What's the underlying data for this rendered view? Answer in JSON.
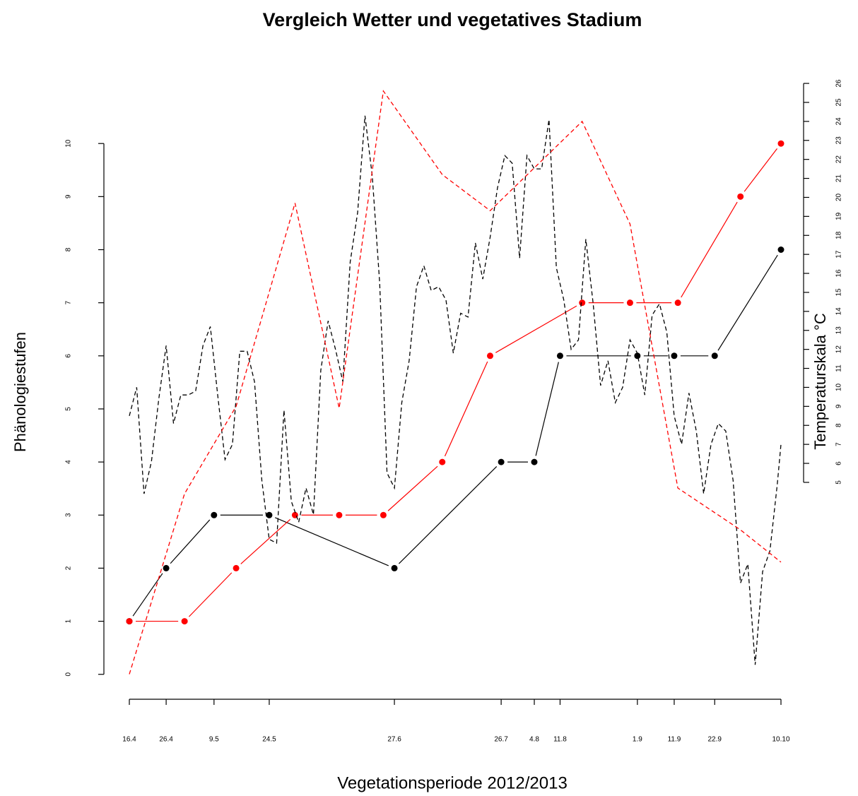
{
  "chart_data": {
    "type": "line",
    "title": "Vergleich Wetter und vegetatives Stadium",
    "x_label": "Vegetationsperiode 2012/2013",
    "y_label": "Phänologiestufen",
    "y2_label": "Temperaturskala °C",
    "xlim": [
      0,
      177
    ],
    "xticks": [
      {
        "value": 0,
        "label": "16.4"
      },
      {
        "value": 10,
        "label": "26.4"
      },
      {
        "value": 23,
        "label": "9.5"
      },
      {
        "value": 38,
        "label": "24.5"
      },
      {
        "value": 72,
        "label": "27.6"
      },
      {
        "value": 101,
        "label": "26.7"
      },
      {
        "value": 110,
        "label": "4.8"
      },
      {
        "value": 117,
        "label": "11.8"
      },
      {
        "value": 138,
        "label": "1.9"
      },
      {
        "value": 148,
        "label": "11.9"
      },
      {
        "value": 159,
        "label": "22.9"
      },
      {
        "value": 177,
        "label": "10.10"
      }
    ],
    "ylim": [
      -0.07,
      11.24
    ],
    "yticks": [
      0,
      1,
      2,
      3,
      4,
      5,
      6,
      7,
      8,
      9,
      10
    ],
    "y2lim": [
      -5.3,
      26.3
    ],
    "y2ticks": [
      5,
      6,
      7,
      8,
      9,
      10,
      11,
      12,
      13,
      14,
      15,
      16,
      17,
      18,
      19,
      20,
      21,
      22,
      23,
      24,
      25,
      26
    ],
    "grid": false,
    "series": [
      {
        "color": "#000000",
        "line_style": "solid",
        "markers": true,
        "x": [
          0,
          10,
          23,
          38,
          72,
          101,
          110,
          117,
          138,
          148,
          159,
          177
        ],
        "values": [
          1,
          2,
          3,
          3,
          2,
          4,
          4,
          6,
          6,
          6,
          6,
          8
        ]
      },
      {
        "color": "#ff0000",
        "line_style": "solid",
        "markers": true,
        "x": [
          0,
          15,
          29,
          45,
          57,
          69,
          85,
          98,
          123,
          136,
          149,
          166,
          177
        ],
        "values": [
          1,
          1,
          2,
          3,
          3,
          3,
          4,
          6,
          7,
          7,
          7,
          9,
          10
        ]
      },
      {
        "color": "#000000",
        "line_style": "dashed",
        "markers": false,
        "axis": "y2",
        "x": [
          0,
          2,
          4,
          6,
          8,
          10,
          12,
          14,
          16,
          18,
          20,
          22,
          24,
          26,
          28,
          30,
          32,
          34,
          36,
          38,
          40,
          42,
          44,
          46,
          48,
          50,
          52,
          54,
          56,
          58,
          60,
          62,
          64,
          66,
          68,
          70,
          72,
          74,
          76,
          78,
          80,
          82,
          84,
          86,
          88,
          90,
          92,
          94,
          96,
          98,
          100,
          102,
          104,
          106,
          108,
          110,
          112,
          114,
          116,
          118,
          120,
          122,
          124,
          126,
          128,
          130,
          132,
          134,
          136,
          138,
          140,
          142,
          144,
          146,
          148,
          150,
          152,
          154,
          156,
          158,
          160,
          162,
          164,
          166,
          168,
          170,
          172,
          174,
          176,
          177
        ],
        "values": [
          8.5,
          10.0,
          4.4,
          6.1,
          9.4,
          12.2,
          8.1,
          9.6,
          9.6,
          9.8,
          12.2,
          13.2,
          9.6,
          6.2,
          7.0,
          11.9,
          11.9,
          10.3,
          5.1,
          2.0,
          1.8,
          8.8,
          4.0,
          2.9,
          4.7,
          3.3,
          10.9,
          13.5,
          12.0,
          10.3,
          16.6,
          19.2,
          24.3,
          21.1,
          15.5,
          5.5,
          4.7,
          9.2,
          11.4,
          15.3,
          16.4,
          15.1,
          15.3,
          14.6,
          11.8,
          13.9,
          13.7,
          17.6,
          15.7,
          17.9,
          20.5,
          22.2,
          21.8,
          16.8,
          22.2,
          21.5,
          21.5,
          24.1,
          16.3,
          14.6,
          12.0,
          12.5,
          17.8,
          14.4,
          10.1,
          11.4,
          9.2,
          10.0,
          12.5,
          11.8,
          9.6,
          13.8,
          14.4,
          12.9,
          8.5,
          7.0,
          9.7,
          7.7,
          4.4,
          7.0,
          8.1,
          7.7,
          5.1,
          -0.3,
          0.7,
          -4.6,
          0.3,
          1.4,
          4.9,
          7.0
        ]
      },
      {
        "color": "#ff0000",
        "line_style": "dashed",
        "markers": false,
        "axis": "y2",
        "x": [
          0,
          15,
          29,
          45,
          57,
          69,
          85,
          98,
          123,
          136,
          149,
          166,
          177
        ],
        "values": [
          -5.1,
          4.4,
          9.0,
          19.7,
          8.9,
          25.6,
          21.2,
          19.3,
          24.0,
          18.6,
          4.7,
          2.5,
          0.8
        ]
      }
    ]
  }
}
